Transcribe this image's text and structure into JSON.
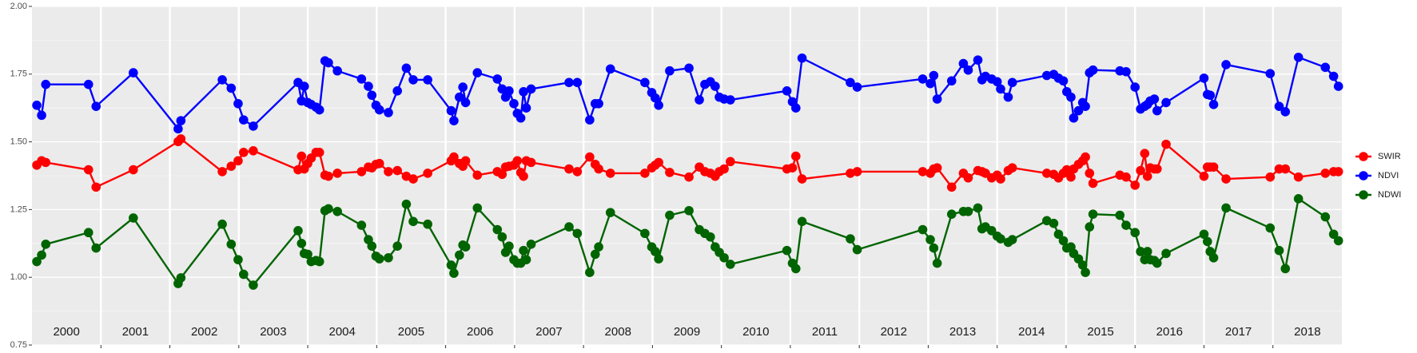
{
  "chart_data": {
    "type": "line",
    "x": [
      2000.07,
      2000.14,
      2000.2,
      2000.82,
      2000.93,
      2001.47,
      2002.12,
      2002.16,
      2002.76,
      2002.89,
      2002.99,
      2003.07,
      2003.21,
      2003.86,
      2003.91,
      2003.95,
      2004.0,
      2004.05,
      2004.12,
      2004.17,
      2004.25,
      2004.3,
      2004.43,
      2004.78,
      2004.88,
      2004.93,
      2004.99,
      2005.04,
      2005.17,
      2005.3,
      2005.43,
      2005.53,
      2005.74,
      2006.08,
      2006.12,
      2006.2,
      2006.25,
      2006.29,
      2006.46,
      2006.75,
      2006.82,
      2006.87,
      2006.92,
      2006.99,
      2007.04,
      2007.09,
      2007.13,
      2007.17,
      2007.24,
      2007.79,
      2007.91,
      2008.09,
      2008.17,
      2008.22,
      2008.39,
      2008.89,
      2008.99,
      2009.04,
      2009.09,
      2009.25,
      2009.53,
      2009.68,
      2009.76,
      2009.84,
      2009.91,
      2009.97,
      2010.04,
      2010.13,
      2010.95,
      2011.03,
      2011.08,
      2011.17,
      2011.87,
      2011.97,
      2012.92,
      2013.03,
      2013.08,
      2013.13,
      2013.34,
      2013.51,
      2013.58,
      2013.72,
      2013.78,
      2013.83,
      2013.92,
      2014.0,
      2014.05,
      2014.16,
      2014.22,
      2014.72,
      2014.82,
      2014.89,
      2014.96,
      2015.01,
      2015.07,
      2015.11,
      2015.18,
      2015.24,
      2015.28,
      2015.34,
      2015.39,
      2015.78,
      2015.87,
      2016.0,
      2016.08,
      2016.14,
      2016.18,
      2016.22,
      2016.28,
      2016.32,
      2016.45,
      2017.0,
      2017.05,
      2017.09,
      2017.14,
      2017.32,
      2017.96,
      2018.09,
      2018.18,
      2018.37,
      2018.76,
      2018.88,
      2018.95
    ],
    "series": [
      {
        "name": "SWIR",
        "color": "#ff0000",
        "values": [
          1.414,
          1.43,
          1.424,
          1.397,
          1.333,
          1.397,
          1.501,
          1.511,
          1.39,
          1.41,
          1.43,
          1.461,
          1.467,
          1.397,
          1.447,
          1.4,
          1.42,
          1.44,
          1.461,
          1.461,
          1.377,
          1.373,
          1.384,
          1.39,
          1.407,
          1.404,
          1.417,
          1.42,
          1.39,
          1.394,
          1.373,
          1.363,
          1.384,
          1.43,
          1.444,
          1.42,
          1.41,
          1.43,
          1.377,
          1.39,
          1.38,
          1.407,
          1.41,
          1.414,
          1.43,
          1.387,
          1.373,
          1.43,
          1.424,
          1.4,
          1.39,
          1.444,
          1.417,
          1.4,
          1.384,
          1.384,
          1.404,
          1.414,
          1.424,
          1.387,
          1.37,
          1.407,
          1.39,
          1.384,
          1.373,
          1.39,
          1.4,
          1.427,
          1.4,
          1.404,
          1.447,
          1.363,
          1.384,
          1.39,
          1.39,
          1.384,
          1.4,
          1.404,
          1.333,
          1.384,
          1.367,
          1.394,
          1.39,
          1.384,
          1.367,
          1.377,
          1.363,
          1.394,
          1.404,
          1.384,
          1.38,
          1.367,
          1.384,
          1.397,
          1.37,
          1.4,
          1.417,
          1.43,
          1.444,
          1.384,
          1.347,
          1.377,
          1.37,
          1.34,
          1.394,
          1.457,
          1.373,
          1.404,
          1.4,
          1.4,
          1.491,
          1.373,
          1.407,
          1.407,
          1.407,
          1.363,
          1.37,
          1.4,
          1.4,
          1.37,
          1.384,
          1.39,
          1.39
        ]
      },
      {
        "name": "NDVI",
        "color": "#0000ff",
        "values": [
          1.635,
          1.598,
          1.712,
          1.712,
          1.631,
          1.755,
          1.548,
          1.578,
          1.729,
          1.698,
          1.641,
          1.581,
          1.558,
          1.719,
          1.651,
          1.705,
          1.645,
          1.638,
          1.628,
          1.618,
          1.799,
          1.792,
          1.762,
          1.732,
          1.705,
          1.672,
          1.635,
          1.618,
          1.608,
          1.688,
          1.772,
          1.729,
          1.729,
          1.615,
          1.578,
          1.665,
          1.702,
          1.645,
          1.755,
          1.732,
          1.695,
          1.665,
          1.688,
          1.641,
          1.605,
          1.588,
          1.685,
          1.625,
          1.695,
          1.719,
          1.719,
          1.581,
          1.641,
          1.641,
          1.769,
          1.719,
          1.682,
          1.662,
          1.635,
          1.762,
          1.772,
          1.655,
          1.712,
          1.722,
          1.705,
          1.665,
          1.658,
          1.655,
          1.688,
          1.648,
          1.625,
          1.809,
          1.719,
          1.702,
          1.732,
          1.715,
          1.745,
          1.658,
          1.725,
          1.789,
          1.765,
          1.802,
          1.729,
          1.742,
          1.732,
          1.722,
          1.695,
          1.665,
          1.719,
          1.745,
          1.749,
          1.735,
          1.725,
          1.685,
          1.665,
          1.588,
          1.615,
          1.645,
          1.631,
          1.755,
          1.765,
          1.762,
          1.759,
          1.702,
          1.621,
          1.631,
          1.638,
          1.651,
          1.658,
          1.615,
          1.645,
          1.735,
          1.675,
          1.672,
          1.638,
          1.785,
          1.752,
          1.631,
          1.611,
          1.812,
          1.775,
          1.742,
          1.705
        ]
      },
      {
        "name": "NDWI",
        "color": "#006400",
        "values": [
          1.058,
          1.082,
          1.122,
          1.165,
          1.108,
          1.219,
          0.977,
          0.998,
          1.196,
          1.122,
          1.065,
          1.011,
          0.971,
          1.172,
          1.125,
          1.088,
          1.085,
          1.058,
          1.062,
          1.058,
          1.246,
          1.253,
          1.243,
          1.192,
          1.139,
          1.115,
          1.078,
          1.068,
          1.072,
          1.115,
          1.27,
          1.206,
          1.196,
          1.045,
          1.015,
          1.082,
          1.119,
          1.112,
          1.256,
          1.176,
          1.149,
          1.092,
          1.115,
          1.065,
          1.052,
          1.052,
          1.099,
          1.065,
          1.122,
          1.186,
          1.162,
          1.018,
          1.085,
          1.112,
          1.239,
          1.162,
          1.112,
          1.095,
          1.068,
          1.229,
          1.246,
          1.176,
          1.162,
          1.149,
          1.112,
          1.092,
          1.072,
          1.048,
          1.099,
          1.052,
          1.032,
          1.206,
          1.142,
          1.102,
          1.176,
          1.139,
          1.108,
          1.052,
          1.233,
          1.243,
          1.243,
          1.256,
          1.179,
          1.186,
          1.172,
          1.152,
          1.142,
          1.129,
          1.139,
          1.209,
          1.199,
          1.159,
          1.135,
          1.108,
          1.112,
          1.088,
          1.068,
          1.045,
          1.018,
          1.186,
          1.233,
          1.229,
          1.192,
          1.165,
          1.095,
          1.065,
          1.095,
          1.065,
          1.062,
          1.052,
          1.088,
          1.159,
          1.132,
          1.095,
          1.072,
          1.256,
          1.182,
          1.099,
          1.032,
          1.29,
          1.223,
          1.159,
          1.135
        ]
      }
    ],
    "xlim": [
      2000,
      2019
    ],
    "xticks": [
      2001,
      2002,
      2003,
      2004,
      2005,
      2006,
      2007,
      2008,
      2009,
      2010,
      2011,
      2012,
      2013,
      2014,
      2015,
      2016,
      2017,
      2018
    ],
    "year_labels": [
      "2000",
      "2001",
      "2002",
      "2003",
      "2004",
      "2005",
      "2006",
      "2007",
      "2008",
      "2009",
      "2010",
      "2011",
      "2012",
      "2013",
      "2014",
      "2015",
      "2016",
      "2017",
      "2018"
    ],
    "ylim": [
      0.75,
      2.0
    ],
    "yticks": [
      0.75,
      {
        "value": 1.0,
        "label": "1.00"
      },
      1.25,
      {
        "value": 1.5,
        "label": "1.50"
      },
      1.75,
      {
        "value": 2.0,
        "label": "2.00"
      }
    ],
    "grid": true,
    "legend": "right"
  }
}
